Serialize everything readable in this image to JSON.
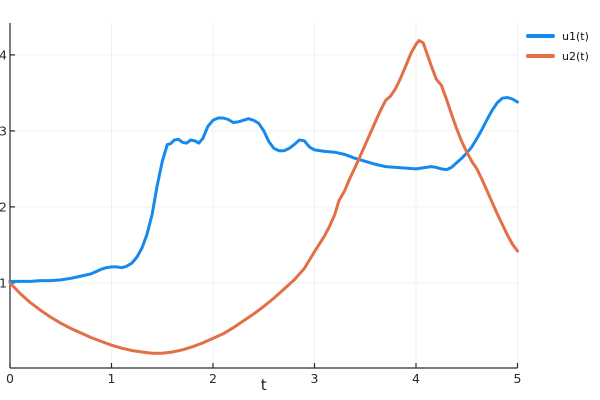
{
  "chart_data": {
    "type": "line",
    "title": "",
    "xlabel": "t",
    "ylabel": "",
    "xlim": [
      0,
      5
    ],
    "ylim": [
      -0.12,
      4.42
    ],
    "x_ticks": [
      0,
      1,
      2,
      3,
      4,
      5
    ],
    "y_ticks": [
      1,
      2,
      3,
      4
    ],
    "grid": true,
    "grid_color": "#f0f0f0",
    "axis_color": "#2a2a2a",
    "tick_text_color": "#2a2a2a",
    "legend_position": "top-right-outside",
    "series": [
      {
        "name": "u1(t)",
        "color": "#1689ef",
        "points": [
          [
            0,
            1.02
          ],
          [
            0.1,
            1.02
          ],
          [
            0.2,
            1.02
          ],
          [
            0.3,
            1.03
          ],
          [
            0.4,
            1.03
          ],
          [
            0.5,
            1.04
          ],
          [
            0.6,
            1.06
          ],
          [
            0.7,
            1.09
          ],
          [
            0.8,
            1.12
          ],
          [
            0.85,
            1.15
          ],
          [
            0.9,
            1.18
          ],
          [
            0.95,
            1.2
          ],
          [
            1.0,
            1.21
          ],
          [
            1.05,
            1.21
          ],
          [
            1.1,
            1.2
          ],
          [
            1.15,
            1.22
          ],
          [
            1.2,
            1.26
          ],
          [
            1.25,
            1.34
          ],
          [
            1.3,
            1.46
          ],
          [
            1.35,
            1.64
          ],
          [
            1.4,
            1.9
          ],
          [
            1.45,
            2.28
          ],
          [
            1.5,
            2.6
          ],
          [
            1.55,
            2.82
          ],
          [
            1.58,
            2.83
          ],
          [
            1.62,
            2.88
          ],
          [
            1.66,
            2.89
          ],
          [
            1.7,
            2.85
          ],
          [
            1.74,
            2.84
          ],
          [
            1.78,
            2.88
          ],
          [
            1.82,
            2.87
          ],
          [
            1.86,
            2.84
          ],
          [
            1.9,
            2.9
          ],
          [
            1.95,
            3.06
          ],
          [
            2.0,
            3.14
          ],
          [
            2.05,
            3.17
          ],
          [
            2.1,
            3.17
          ],
          [
            2.15,
            3.15
          ],
          [
            2.2,
            3.11
          ],
          [
            2.25,
            3.12
          ],
          [
            2.3,
            3.14
          ],
          [
            2.35,
            3.16
          ],
          [
            2.4,
            3.14
          ],
          [
            2.45,
            3.1
          ],
          [
            2.5,
            3.0
          ],
          [
            2.55,
            2.86
          ],
          [
            2.6,
            2.77
          ],
          [
            2.65,
            2.74
          ],
          [
            2.7,
            2.74
          ],
          [
            2.75,
            2.77
          ],
          [
            2.8,
            2.82
          ],
          [
            2.85,
            2.88
          ],
          [
            2.9,
            2.87
          ],
          [
            2.95,
            2.79
          ],
          [
            3.0,
            2.75
          ],
          [
            3.1,
            2.73
          ],
          [
            3.2,
            2.72
          ],
          [
            3.3,
            2.69
          ],
          [
            3.4,
            2.64
          ],
          [
            3.5,
            2.6
          ],
          [
            3.6,
            2.56
          ],
          [
            3.7,
            2.53
          ],
          [
            3.8,
            2.52
          ],
          [
            3.9,
            2.51
          ],
          [
            4.0,
            2.5
          ],
          [
            4.05,
            2.51
          ],
          [
            4.1,
            2.52
          ],
          [
            4.15,
            2.53
          ],
          [
            4.2,
            2.52
          ],
          [
            4.25,
            2.5
          ],
          [
            4.3,
            2.49
          ],
          [
            4.35,
            2.52
          ],
          [
            4.4,
            2.58
          ],
          [
            4.45,
            2.64
          ],
          [
            4.5,
            2.71
          ],
          [
            4.55,
            2.79
          ],
          [
            4.6,
            2.9
          ],
          [
            4.65,
            3.02
          ],
          [
            4.7,
            3.15
          ],
          [
            4.75,
            3.27
          ],
          [
            4.8,
            3.37
          ],
          [
            4.85,
            3.43
          ],
          [
            4.9,
            3.44
          ],
          [
            4.95,
            3.42
          ],
          [
            5.0,
            3.38
          ]
        ]
      },
      {
        "name": "u2(t)",
        "color": "#e26f46",
        "points": [
          [
            0,
            1.0
          ],
          [
            0.1,
            0.86
          ],
          [
            0.2,
            0.74
          ],
          [
            0.3,
            0.64
          ],
          [
            0.4,
            0.55
          ],
          [
            0.5,
            0.47
          ],
          [
            0.6,
            0.4
          ],
          [
            0.7,
            0.34
          ],
          [
            0.8,
            0.28
          ],
          [
            0.9,
            0.23
          ],
          [
            1.0,
            0.18
          ],
          [
            1.1,
            0.14
          ],
          [
            1.2,
            0.11
          ],
          [
            1.3,
            0.09
          ],
          [
            1.4,
            0.075
          ],
          [
            1.5,
            0.075
          ],
          [
            1.6,
            0.09
          ],
          [
            1.7,
            0.12
          ],
          [
            1.8,
            0.16
          ],
          [
            1.9,
            0.21
          ],
          [
            2.0,
            0.27
          ],
          [
            2.1,
            0.33
          ],
          [
            2.2,
            0.41
          ],
          [
            2.3,
            0.5
          ],
          [
            2.4,
            0.59
          ],
          [
            2.5,
            0.69
          ],
          [
            2.6,
            0.8
          ],
          [
            2.7,
            0.92
          ],
          [
            2.8,
            1.04
          ],
          [
            2.9,
            1.19
          ],
          [
            3.0,
            1.41
          ],
          [
            3.1,
            1.62
          ],
          [
            3.15,
            1.75
          ],
          [
            3.2,
            1.9
          ],
          [
            3.24,
            2.08
          ],
          [
            3.3,
            2.22
          ],
          [
            3.35,
            2.38
          ],
          [
            3.4,
            2.52
          ],
          [
            3.5,
            2.82
          ],
          [
            3.55,
            2.97
          ],
          [
            3.6,
            3.12
          ],
          [
            3.65,
            3.27
          ],
          [
            3.7,
            3.4
          ],
          [
            3.75,
            3.46
          ],
          [
            3.8,
            3.56
          ],
          [
            3.85,
            3.7
          ],
          [
            3.9,
            3.86
          ],
          [
            3.95,
            4.02
          ],
          [
            4.0,
            4.14
          ],
          [
            4.03,
            4.19
          ],
          [
            4.07,
            4.16
          ],
          [
            4.1,
            4.05
          ],
          [
            4.15,
            3.86
          ],
          [
            4.2,
            3.68
          ],
          [
            4.25,
            3.6
          ],
          [
            4.3,
            3.42
          ],
          [
            4.35,
            3.22
          ],
          [
            4.4,
            3.03
          ],
          [
            4.45,
            2.86
          ],
          [
            4.5,
            2.72
          ],
          [
            4.55,
            2.6
          ],
          [
            4.6,
            2.5
          ],
          [
            4.65,
            2.36
          ],
          [
            4.7,
            2.21
          ],
          [
            4.75,
            2.06
          ],
          [
            4.8,
            1.91
          ],
          [
            4.85,
            1.77
          ],
          [
            4.9,
            1.63
          ],
          [
            4.95,
            1.51
          ],
          [
            5.0,
            1.42
          ]
        ]
      }
    ]
  }
}
